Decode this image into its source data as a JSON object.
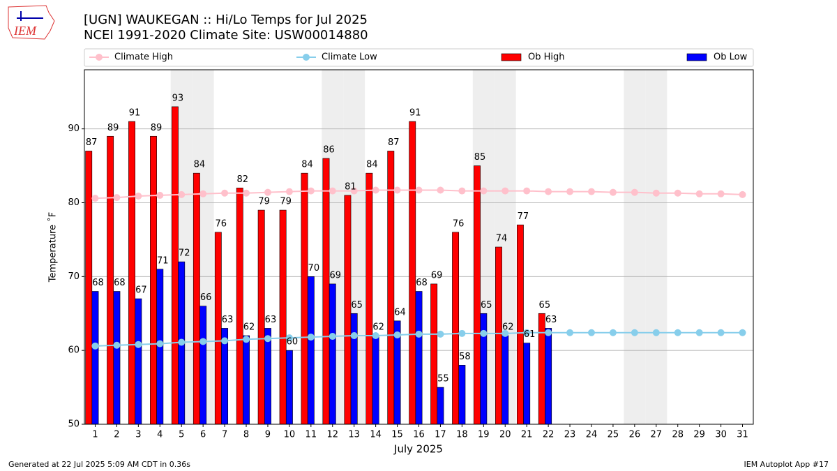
{
  "logo": "IEM",
  "footer": {
    "left": "Generated at 22 Jul 2025 5:09 AM CDT in 0.36s",
    "right": "IEM Autoplot App #17"
  },
  "chart_data": {
    "type": "bar",
    "title": "[UGN] WAUKEGAN :: Hi/Lo Temps for Jul 2025",
    "subtitle": "NCEI 1991-2020 Climate Site: USW00014880",
    "x_label": "July 2025",
    "y_label": "Temperature ˚F",
    "x": [
      1,
      2,
      3,
      4,
      5,
      6,
      7,
      8,
      9,
      10,
      11,
      12,
      13,
      14,
      15,
      16,
      17,
      18,
      19,
      20,
      21,
      22,
      23,
      24,
      25,
      26,
      27,
      28,
      29,
      30,
      31
    ],
    "xlim": [
      0.5,
      31.5
    ],
    "xticks": [
      1,
      2,
      3,
      4,
      5,
      6,
      7,
      8,
      9,
      10,
      11,
      12,
      13,
      14,
      15,
      16,
      17,
      18,
      19,
      20,
      21,
      22,
      23,
      24,
      25,
      26,
      27,
      28,
      29,
      30,
      31
    ],
    "ylim": [
      50,
      98
    ],
    "yticks": [
      50,
      60,
      70,
      80,
      90
    ],
    "grid": true,
    "shaded_days": [
      5,
      6,
      12,
      13,
      19,
      20,
      26,
      27
    ],
    "series": [
      {
        "name": "Climate High",
        "type": "line",
        "color": "#ffc0cb",
        "values": [
          80.6,
          80.7,
          80.9,
          81.0,
          81.1,
          81.2,
          81.3,
          81.3,
          81.4,
          81.5,
          81.6,
          81.6,
          81.6,
          81.7,
          81.7,
          81.7,
          81.7,
          81.6,
          81.6,
          81.6,
          81.6,
          81.5,
          81.5,
          81.5,
          81.4,
          81.4,
          81.3,
          81.3,
          81.2,
          81.2,
          81.1
        ]
      },
      {
        "name": "Climate Low",
        "type": "line",
        "color": "#87ceeb",
        "values": [
          60.6,
          60.7,
          60.8,
          60.9,
          61.1,
          61.2,
          61.3,
          61.5,
          61.6,
          61.7,
          61.8,
          61.9,
          62.0,
          62.0,
          62.1,
          62.2,
          62.2,
          62.3,
          62.3,
          62.3,
          62.4,
          62.4,
          62.4,
          62.4,
          62.4,
          62.4,
          62.4,
          62.4,
          62.4,
          62.4,
          62.4
        ]
      },
      {
        "name": "Ob High",
        "type": "bar",
        "color": "#ff0000",
        "values": [
          87,
          89,
          91,
          89,
          93,
          84,
          76,
          82,
          79,
          79,
          84,
          86,
          81,
          84,
          87,
          91,
          69,
          76,
          85,
          74,
          77,
          65,
          null,
          null,
          null,
          null,
          null,
          null,
          null,
          null,
          null
        ]
      },
      {
        "name": "Ob Low",
        "type": "bar",
        "color": "#0000ff",
        "values": [
          68,
          68,
          67,
          71,
          72,
          66,
          63,
          62,
          63,
          60,
          70,
          69,
          65,
          62,
          64,
          68,
          55,
          58,
          65,
          62,
          61,
          63,
          null,
          null,
          null,
          null,
          null,
          null,
          null,
          null,
          null
        ]
      }
    ]
  }
}
